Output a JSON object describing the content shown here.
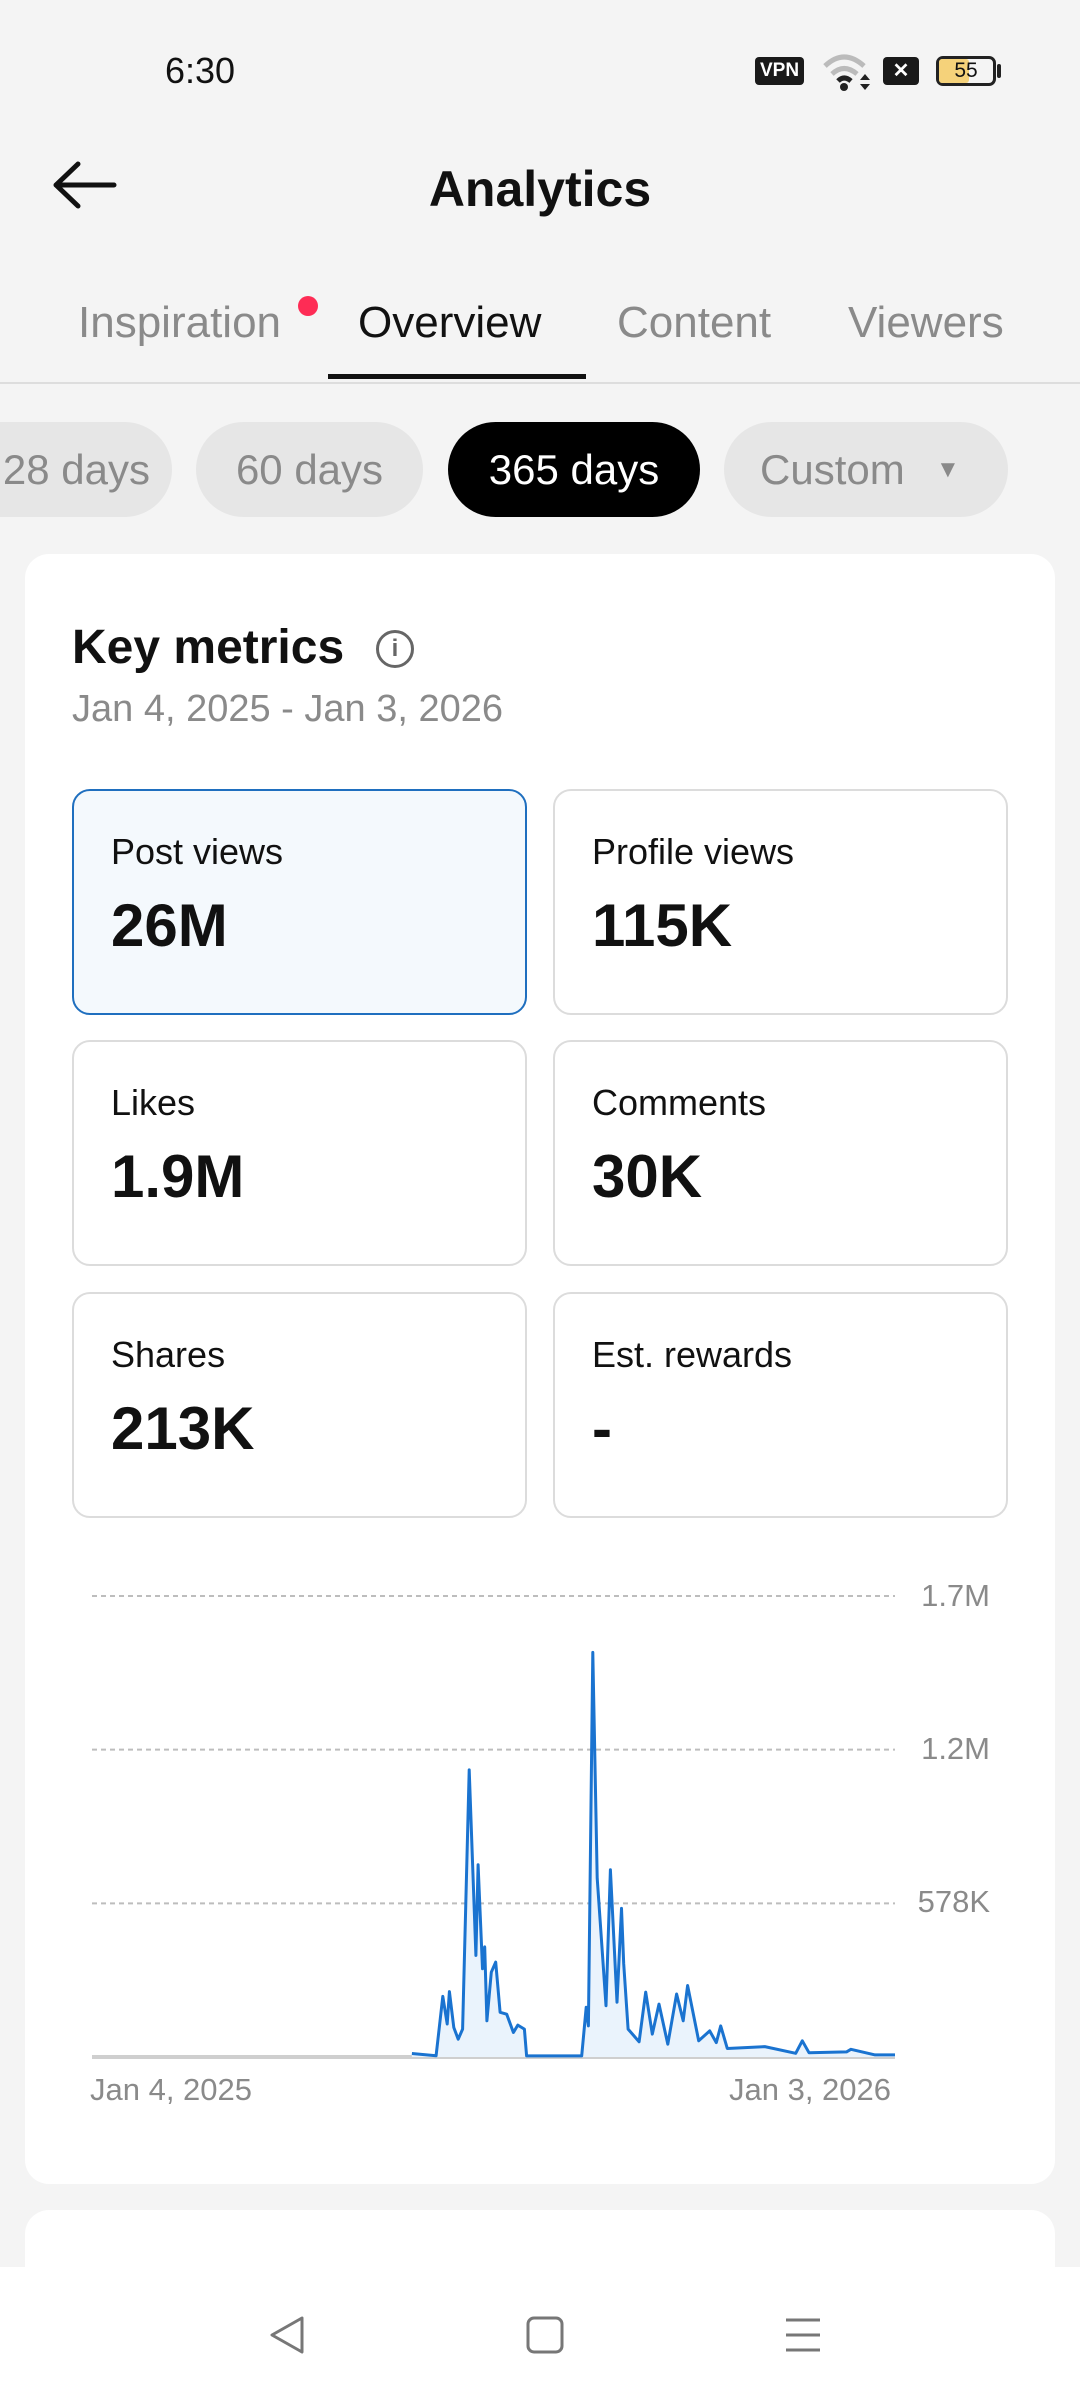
{
  "status_bar": {
    "time": "6:30",
    "vpn": "VPN",
    "battery": "55",
    "battery_level": 55,
    "icons": [
      "vpn-icon",
      "wifi-icon",
      "no-sim-icon",
      "battery-icon"
    ]
  },
  "header": {
    "title": "Analytics",
    "back_icon": "arrow-left-icon"
  },
  "tabs": [
    {
      "label": "Inspiration",
      "has_notification_dot": true
    },
    {
      "label": "Overview",
      "active": true
    },
    {
      "label": "Content"
    },
    {
      "label": "Viewers"
    }
  ],
  "ranges": [
    {
      "label": "28 days"
    },
    {
      "label": "60 days"
    },
    {
      "label": "365 days",
      "active": true
    },
    {
      "label": "Custom",
      "has_dropdown": true
    }
  ],
  "key_metrics": {
    "title": "Key metrics",
    "date_range": "Jan 4, 2025 - Jan 3, 2026",
    "metrics": [
      {
        "label": "Post views",
        "value": "26M",
        "selected": true
      },
      {
        "label": "Profile views",
        "value": "115K"
      },
      {
        "label": "Likes",
        "value": "1.9M"
      },
      {
        "label": "Comments",
        "value": "30K"
      },
      {
        "label": "Shares",
        "value": "213K"
      },
      {
        "label": "Est. rewards",
        "value": "-"
      }
    ]
  },
  "chart_data": {
    "type": "line",
    "series_color": "#1a73d0",
    "grid": "dashed horizontal",
    "x_range": [
      "2025-01-04",
      "2026-01-03"
    ],
    "x_tick_labels": [
      "Jan 4, 2025",
      "Jan 3, 2026"
    ],
    "y_ticks": [
      {
        "value": 578000,
        "label": "578K"
      },
      {
        "value": 1156000,
        "label": "1.2M"
      },
      {
        "value": 1734000,
        "label": "1.7M"
      }
    ],
    "ylim": [
      0,
      1734000
    ],
    "points": [
      [
        "2025-05-29",
        13000
      ],
      [
        "2025-06-09",
        5000
      ],
      [
        "2025-06-12",
        228000
      ],
      [
        "2025-06-14",
        124000
      ],
      [
        "2025-06-15",
        246000
      ],
      [
        "2025-06-17",
        111000
      ],
      [
        "2025-06-19",
        67000
      ],
      [
        "2025-06-21",
        105000
      ],
      [
        "2025-06-24",
        1080000
      ],
      [
        "2025-06-27",
        382000
      ],
      [
        "2025-06-28",
        723000
      ],
      [
        "2025-06-30",
        332000
      ],
      [
        "2025-07-01",
        414000
      ],
      [
        "2025-07-02",
        136000
      ],
      [
        "2025-07-04",
        319000
      ],
      [
        "2025-07-06",
        357000
      ],
      [
        "2025-07-08",
        168000
      ],
      [
        "2025-07-11",
        161000
      ],
      [
        "2025-07-14",
        92000
      ],
      [
        "2025-07-16",
        120000
      ],
      [
        "2025-07-19",
        105000
      ],
      [
        "2025-07-20",
        4000
      ],
      [
        "2025-08-14",
        4000
      ],
      [
        "2025-08-16",
        187000
      ],
      [
        "2025-08-17",
        117000
      ],
      [
        "2025-08-19",
        1522000
      ],
      [
        "2025-08-21",
        673000
      ],
      [
        "2025-08-25",
        193000
      ],
      [
        "2025-08-27",
        704000
      ],
      [
        "2025-08-30",
        206000
      ],
      [
        "2025-09-01",
        559000
      ],
      [
        "2025-09-02",
        351000
      ],
      [
        "2025-09-04",
        105000
      ],
      [
        "2025-09-09",
        57000
      ],
      [
        "2025-09-12",
        244000
      ],
      [
        "2025-09-15",
        86000
      ],
      [
        "2025-09-18",
        199000
      ],
      [
        "2025-09-22",
        48000
      ],
      [
        "2025-09-26",
        237000
      ],
      [
        "2025-09-29",
        136000
      ],
      [
        "2025-10-01",
        269000
      ],
      [
        "2025-10-06",
        61000
      ],
      [
        "2025-10-11",
        98000
      ],
      [
        "2025-10-14",
        54000
      ],
      [
        "2025-10-16",
        117000
      ],
      [
        "2025-10-19",
        32000
      ],
      [
        "2025-11-05",
        39000
      ],
      [
        "2025-11-19",
        14000
      ],
      [
        "2025-11-22",
        61000
      ],
      [
        "2025-11-25",
        16000
      ],
      [
        "2025-12-12",
        19000
      ],
      [
        "2025-12-14",
        29000
      ],
      [
        "2025-12-25",
        8000
      ],
      [
        "2026-01-03",
        8000
      ]
    ]
  },
  "nav_bar": {
    "icons": [
      "back-triangle-icon",
      "home-square-icon",
      "menu-lines-icon"
    ]
  }
}
